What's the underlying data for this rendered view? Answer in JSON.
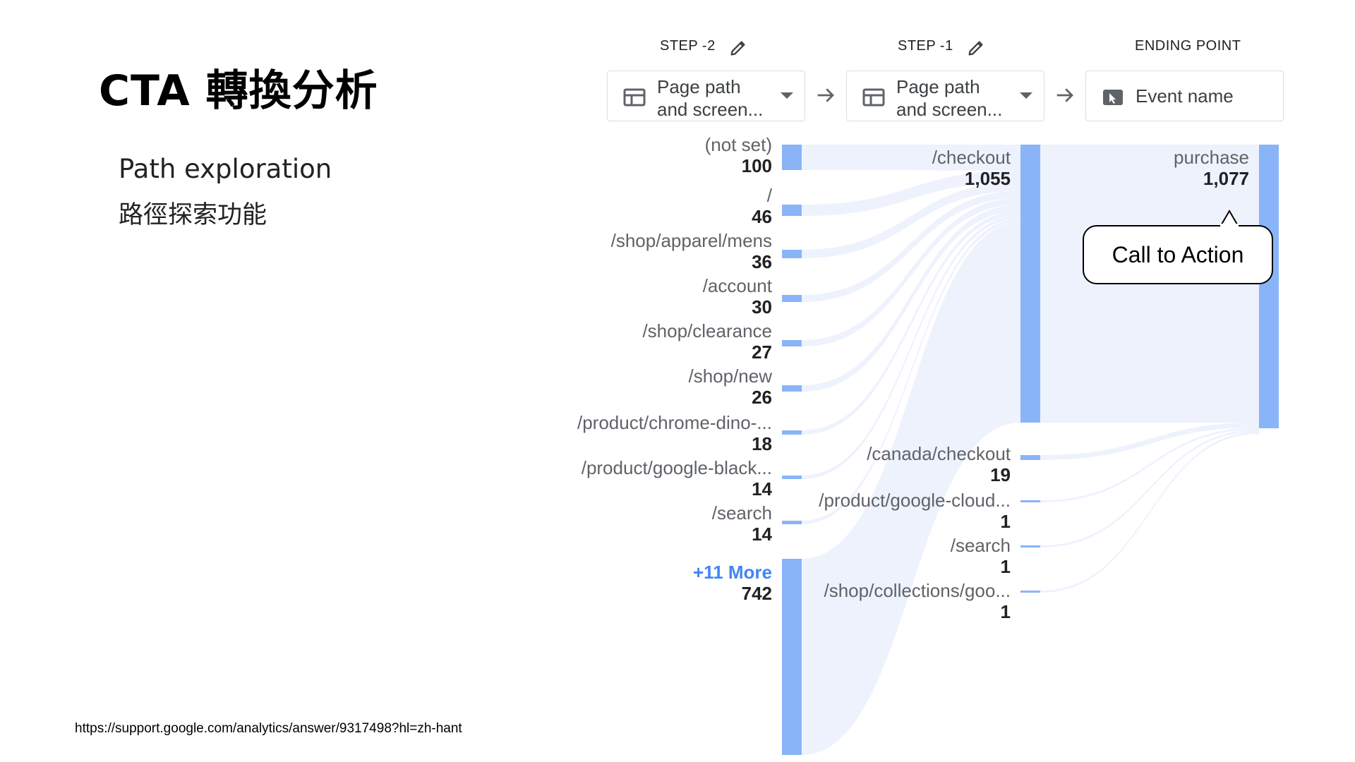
{
  "slide": {
    "title": "CTA 轉換分析",
    "subtitle_en": "Path exploration",
    "subtitle_zh": "路徑探索功能",
    "source_url": "https://support.google.com/analytics/answer/9317498?hl=zh-hant"
  },
  "steps": [
    {
      "header": "STEP -2",
      "dimension_line1": "Page path",
      "dimension_line2": "and screen...",
      "icon": "table-icon",
      "has_edit": true
    },
    {
      "header": "STEP -1",
      "dimension_line1": "Page path",
      "dimension_line2": "and screen...",
      "icon": "table-icon",
      "has_edit": true
    },
    {
      "header": "ENDING POINT",
      "dimension_line1": "Event name",
      "icon": "cursor-click-icon",
      "has_edit": false
    }
  ],
  "colors": {
    "node": "#8ab4f8",
    "flow": "#e8eefc",
    "more": "#4285f4"
  },
  "chart_data": {
    "type": "sankey",
    "columns": [
      {
        "step": "STEP -2",
        "nodes": [
          {
            "name": "(not set)",
            "value": "100"
          },
          {
            "name": "/",
            "value": "46"
          },
          {
            "name": "/shop/apparel/mens",
            "value": "36"
          },
          {
            "name": "/account",
            "value": "30"
          },
          {
            "name": "/shop/clearance",
            "value": "27"
          },
          {
            "name": "/shop/new",
            "value": "26"
          },
          {
            "name": "/product/chrome-dino-...",
            "value": "18"
          },
          {
            "name": "/product/google-black...",
            "value": "14"
          },
          {
            "name": "/search",
            "value": "14"
          },
          {
            "name": "+11 More",
            "value": "742"
          }
        ]
      },
      {
        "step": "STEP -1",
        "nodes": [
          {
            "name": "/checkout",
            "value": "1,055"
          },
          {
            "name": "/canada/checkout",
            "value": "19"
          },
          {
            "name": "/product/google-cloud...",
            "value": "1"
          },
          {
            "name": "/search",
            "value": "1"
          },
          {
            "name": "/shop/collections/goo...",
            "value": "1"
          }
        ]
      },
      {
        "step": "ENDING POINT",
        "nodes": [
          {
            "name": "purchase",
            "value": "1,077"
          }
        ]
      }
    ]
  },
  "callout": {
    "text": "Call to Action"
  }
}
